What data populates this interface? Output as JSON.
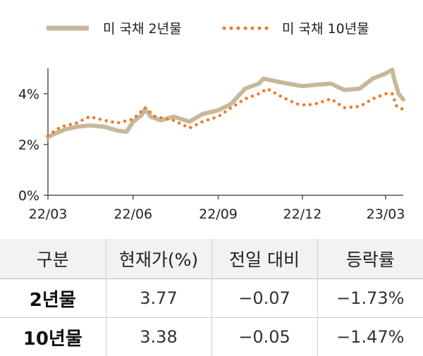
{
  "chart_data": {
    "type": "line",
    "title": "",
    "xlabel": "",
    "ylabel": "",
    "x_ticks": [
      "22/03",
      "22/06",
      "22/09",
      "22/12",
      "23/03"
    ],
    "y_ticks": [
      "0%",
      "2%",
      "4%"
    ],
    "ylim": [
      0,
      5
    ],
    "legend_position": "top",
    "grid": false,
    "series": [
      {
        "name": "미 국채 2년물",
        "style": "solid",
        "color": "#c8b89a",
        "x": [
          "2022-03-01",
          "2022-03-10",
          "2022-03-20",
          "2022-04-01",
          "2022-04-15",
          "2022-05-01",
          "2022-05-15",
          "2022-05-25",
          "2022-06-01",
          "2022-06-10",
          "2022-06-14",
          "2022-06-20",
          "2022-07-01",
          "2022-07-15",
          "2022-08-01",
          "2022-08-15",
          "2022-09-01",
          "2022-09-15",
          "2022-09-30",
          "2022-10-15",
          "2022-10-20",
          "2022-11-01",
          "2022-11-15",
          "2022-12-01",
          "2022-12-15",
          "2023-01-01",
          "2023-01-15",
          "2023-02-01",
          "2023-02-15",
          "2023-03-01",
          "2023-03-08",
          "2023-03-10",
          "2023-03-15",
          "2023-03-20"
        ],
        "values": [
          2.3,
          2.45,
          2.6,
          2.7,
          2.75,
          2.7,
          2.55,
          2.5,
          2.9,
          3.15,
          3.4,
          3.1,
          2.95,
          3.1,
          2.9,
          3.2,
          3.35,
          3.6,
          4.2,
          4.4,
          4.6,
          4.5,
          4.4,
          4.3,
          4.35,
          4.4,
          4.15,
          4.2,
          4.6,
          4.8,
          4.95,
          4.6,
          4.0,
          3.77
        ]
      },
      {
        "name": "미 국채 10년물",
        "style": "dotted",
        "color": "#ef7a24",
        "x": [
          "2022-03-01",
          "2022-03-15",
          "2022-04-01",
          "2022-04-15",
          "2022-05-01",
          "2022-05-15",
          "2022-06-01",
          "2022-06-14",
          "2022-06-25",
          "2022-07-15",
          "2022-08-01",
          "2022-08-15",
          "2022-09-01",
          "2022-09-15",
          "2022-09-30",
          "2022-10-15",
          "2022-10-24",
          "2022-11-10",
          "2022-11-25",
          "2022-12-05",
          "2022-12-15",
          "2023-01-01",
          "2023-01-15",
          "2023-02-01",
          "2023-02-15",
          "2023-03-01",
          "2023-03-08",
          "2023-03-13",
          "2023-03-20"
        ],
        "values": [
          2.35,
          2.7,
          2.85,
          3.1,
          2.95,
          2.85,
          3.0,
          3.45,
          3.1,
          2.95,
          2.65,
          2.9,
          3.1,
          3.45,
          3.8,
          4.0,
          4.2,
          3.85,
          3.6,
          3.55,
          3.6,
          3.8,
          3.45,
          3.5,
          3.8,
          4.0,
          4.0,
          3.5,
          3.38
        ]
      }
    ]
  },
  "legend": {
    "series_2y": "미 국채 2년물",
    "series_10y": "미 국채 10년물"
  },
  "table": {
    "headers": [
      "구분",
      "현재가(%)",
      "전일 대비",
      "등락률"
    ],
    "rows": [
      [
        "2년물",
        "3.77",
        "−0.07",
        "−1.73%"
      ],
      [
        "10년물",
        "3.38",
        "−0.05",
        "−1.47%"
      ]
    ]
  }
}
